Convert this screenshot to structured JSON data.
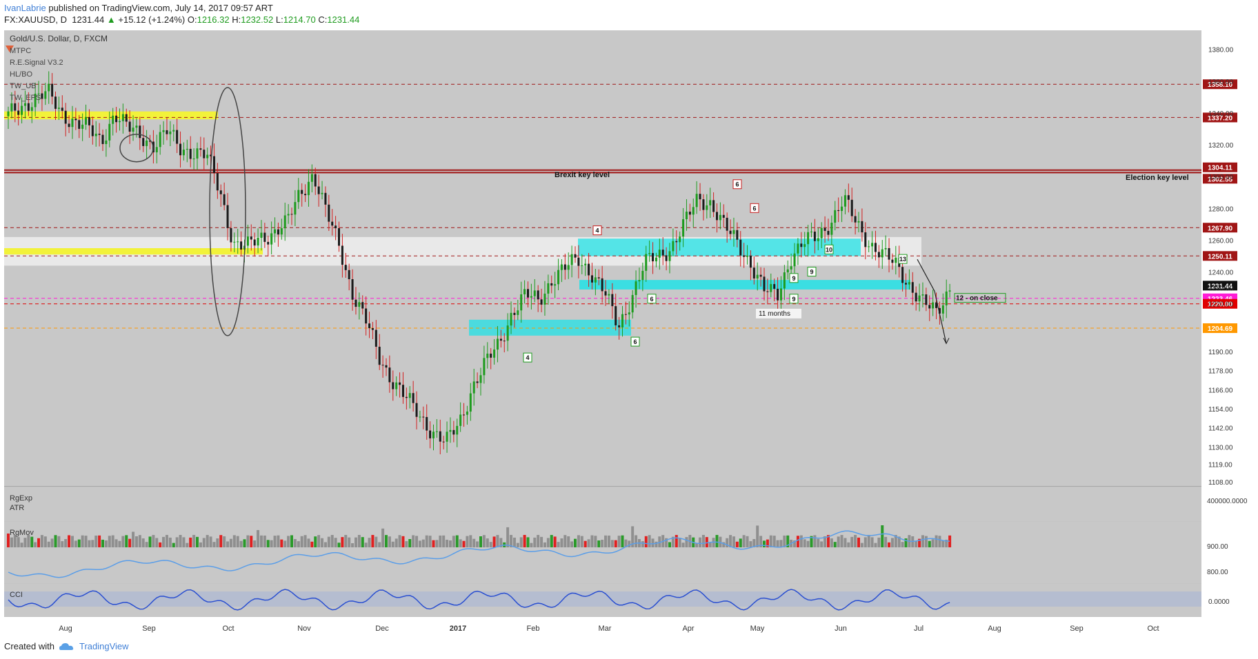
{
  "header": {
    "author": "IvanLabrie",
    "published_text": "published on TradingView.com, July 14, 2017 09:57 ART",
    "symbol": "FX:XAUUSD, D",
    "last": "1231.44",
    "change_arrow": "▲",
    "change": "+15.12 (+1.24%)",
    "o_label": "O:",
    "o": "1216.32",
    "h_label": "H:",
    "h": "1232.52",
    "l_label": "L:",
    "l": "1214.70",
    "c_label": "C:",
    "c": "1231.44"
  },
  "legend": {
    "title": "Gold/U.S. Dollar, D, FXCM",
    "indicators": [
      "MTPC",
      "R.E.Signal V3.2",
      "HL/BO",
      "TW_UB",
      "TW_EPS"
    ]
  },
  "annotations": {
    "brexit": "Brexit key level",
    "election": "Election key level",
    "eleven_months": "11 months",
    "on_close": "12 - on close",
    "counts": [
      "4",
      "6",
      "6",
      "9",
      "9",
      "9",
      "10",
      "6",
      "4",
      "6",
      "13"
    ]
  },
  "panels": {
    "volume": {
      "labels": [
        "RgExp",
        "ATR"
      ],
      "scale": "400000.0000"
    },
    "rgmov": {
      "label": "RgMov",
      "ticks": [
        "900.00",
        "800.00"
      ]
    },
    "cci": {
      "label": "CCI",
      "ticks": [
        "0.0000"
      ]
    }
  },
  "footer": {
    "created_with": "Created with",
    "brand": "TradingView"
  },
  "colors": {
    "up": "#1e9b1e",
    "down": "#d21f1f",
    "level": "#a01515",
    "cyan": "#22e2e6",
    "yellow": "#f2f23a",
    "magenta": "#ff1bd6",
    "orange": "#ff9800",
    "background": "#c8c8c8"
  },
  "chart_data": {
    "type": "candlestick",
    "title": "Gold/U.S. Dollar, D, FXCM",
    "y_range": [
      1105,
      1392
    ],
    "y_ticks": [
      1380,
      1360,
      1340,
      1320,
      1300,
      1280,
      1260,
      1240,
      1230,
      1220,
      1190,
      1178,
      1166,
      1154,
      1142,
      1130,
      1119,
      1108
    ],
    "x_labels": [
      "Aug",
      "Sep",
      "Oct",
      "Nov",
      "Dec",
      "2017",
      "Feb",
      "Mar",
      "Apr",
      "May",
      "Jun",
      "Jul",
      "Aug",
      "Sep",
      "Oct"
    ],
    "levels": [
      {
        "value": 1358.1,
        "label": "1358.10",
        "color": "#a01515"
      },
      {
        "value": 1337.2,
        "label": "1337.20",
        "color": "#a01515"
      },
      {
        "value": 1304.11,
        "label": "1304.11",
        "color": "#a01515"
      },
      {
        "value": 1302.55,
        "label": "1302.55",
        "color": "#a01515"
      },
      {
        "value": 1267.9,
        "label": "1267.90",
        "color": "#a01515"
      },
      {
        "value": 1250.11,
        "label": "1250.11",
        "color": "#a01515"
      },
      {
        "value": 1231.44,
        "label": "1231.44",
        "color": "#111111"
      },
      {
        "value": 1223.46,
        "label": "1223.46",
        "color": "#ff1bd6"
      },
      {
        "value": 1220.0,
        "label": "1220.00",
        "color": "#e00000"
      },
      {
        "value": 1204.69,
        "label": "1204.69",
        "color": "#ff9800"
      }
    ],
    "weekly_closes": [
      1338,
      1344,
      1350,
      1352,
      1340,
      1335,
      1330,
      1322,
      1340,
      1330,
      1326,
      1320,
      1328,
      1318,
      1316,
      1312,
      1290,
      1258,
      1255,
      1262,
      1265,
      1270,
      1290,
      1302,
      1276,
      1256,
      1226,
      1208,
      1186,
      1172,
      1160,
      1150,
      1140,
      1132,
      1145,
      1168,
      1182,
      1195,
      1215,
      1225,
      1222,
      1236,
      1242,
      1248,
      1240,
      1226,
      1205,
      1225,
      1245,
      1250,
      1256,
      1270,
      1286,
      1284,
      1268,
      1258,
      1246,
      1228,
      1225,
      1250,
      1258,
      1262,
      1272,
      1285,
      1270,
      1258,
      1250,
      1244,
      1232,
      1220,
      1214,
      1231
    ]
  }
}
